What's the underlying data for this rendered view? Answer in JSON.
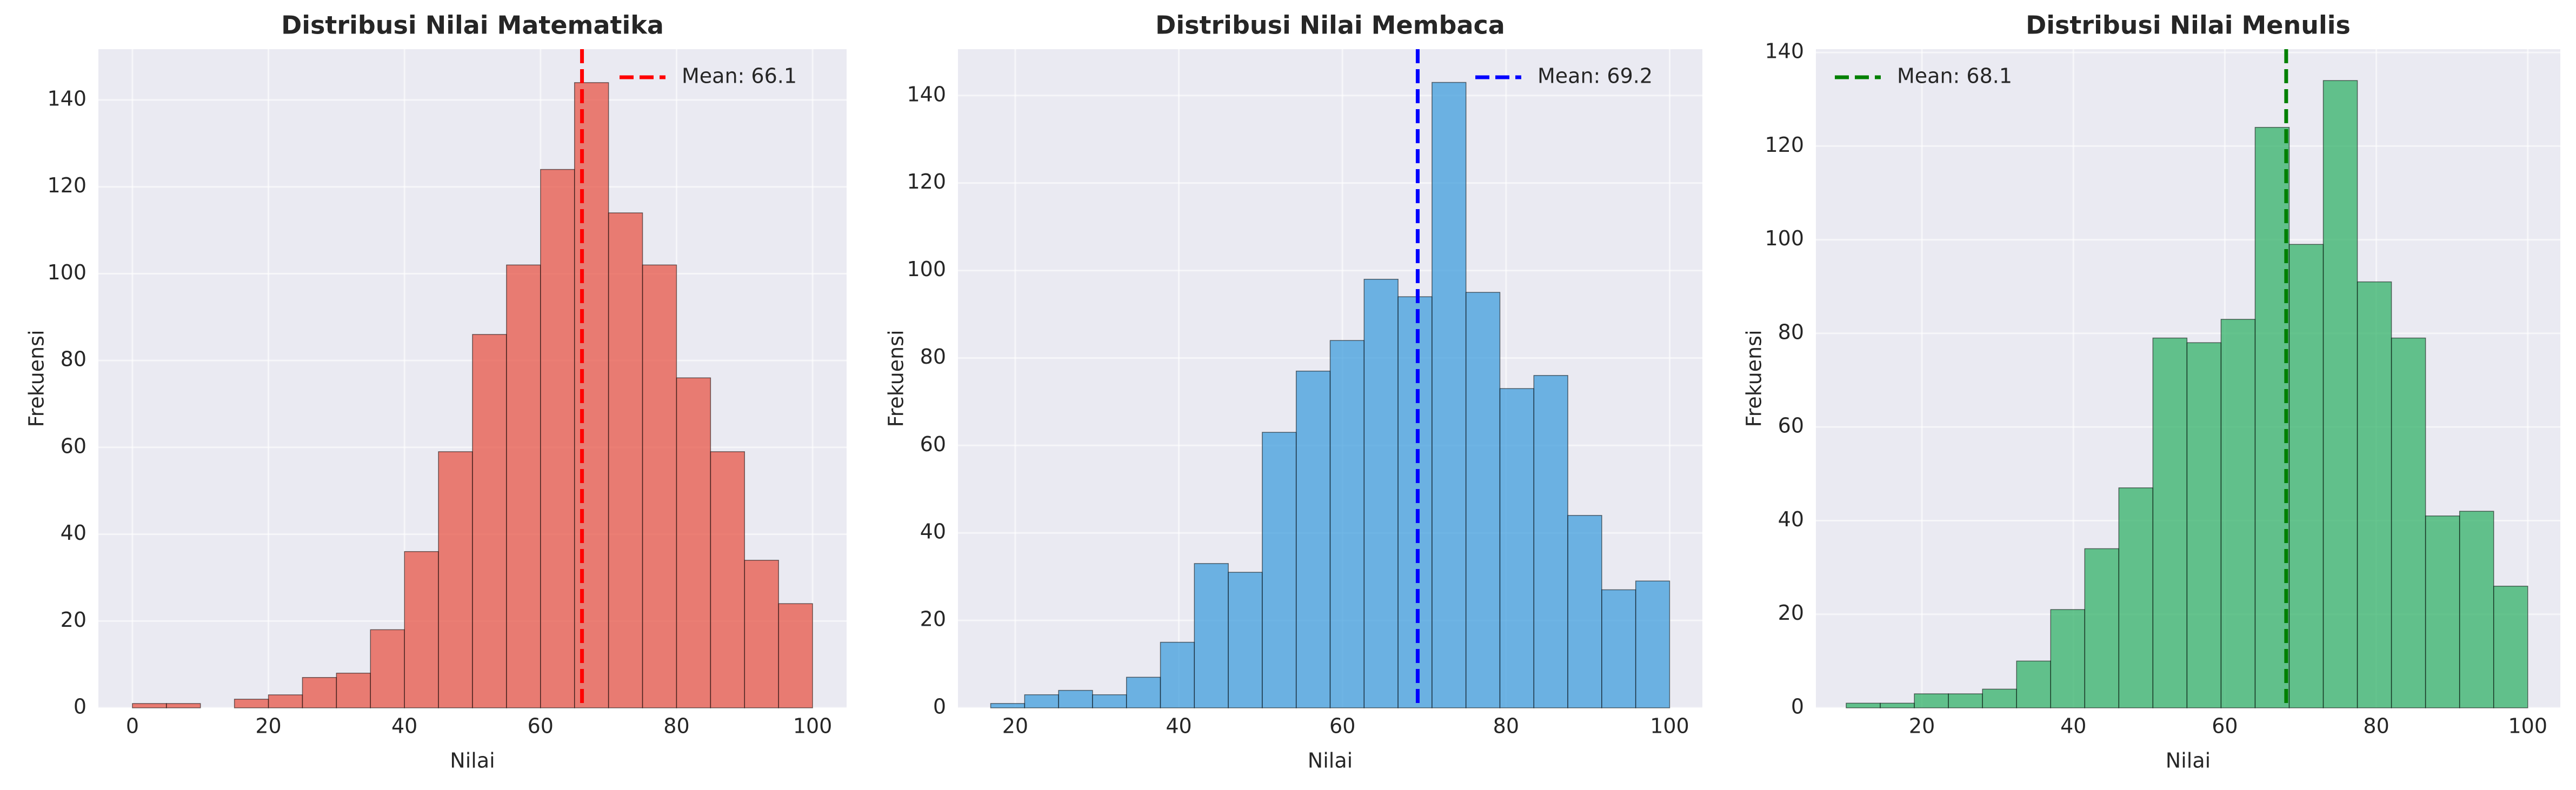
{
  "chart_data": [
    {
      "type": "histogram",
      "title": "Distribusi Nilai Matematika",
      "xlabel": "Nilai",
      "ylabel": "Frekuensi",
      "bins": [
        0,
        5,
        10,
        15,
        20,
        25,
        30,
        35,
        40,
        45,
        50,
        55,
        60,
        65,
        70,
        75,
        80,
        85,
        90,
        95,
        100
      ],
      "counts": [
        1,
        1,
        0,
        2,
        3,
        7,
        8,
        18,
        36,
        59,
        86,
        102,
        124,
        144,
        114,
        102,
        76,
        59,
        34,
        24
      ],
      "color": "#e74c3c",
      "xlim": [
        -5,
        105
      ],
      "ylim": [
        0,
        151.7
      ],
      "xticks": [
        0,
        20,
        40,
        60,
        80,
        100
      ],
      "yticks": [
        0,
        20,
        40,
        60,
        80,
        100,
        120,
        140
      ],
      "grid": true,
      "mean_line": {
        "label": "Mean: 66.1",
        "value": 66.1,
        "color": "#ff0000"
      },
      "legend": "upper right"
    },
    {
      "type": "histogram",
      "title": "Distribusi Nilai Membaca",
      "xlabel": "Nilai",
      "ylabel": "Frekuensi",
      "bins": [
        17,
        21.15,
        25.3,
        29.45,
        33.6,
        37.75,
        41.9,
        46.05,
        50.2,
        54.35,
        58.5,
        62.65,
        66.8,
        70.95,
        75.1,
        79.25,
        83.4,
        87.55,
        91.7,
        95.85,
        100
      ],
      "counts": [
        1,
        3,
        4,
        3,
        7,
        15,
        33,
        31,
        63,
        77,
        84,
        98,
        94,
        143,
        95,
        73,
        76,
        44,
        27,
        29
      ],
      "color": "#3498db",
      "xlim": [
        13,
        104
      ],
      "ylim": [
        0,
        150.6
      ],
      "xticks": [
        20,
        40,
        60,
        80,
        100
      ],
      "yticks": [
        0,
        20,
        40,
        60,
        80,
        100,
        120,
        140
      ],
      "grid": true,
      "mean_line": {
        "label": "Mean: 69.2",
        "value": 69.2,
        "color": "#0000ff"
      },
      "legend": "upper right"
    },
    {
      "type": "histogram",
      "title": "Distribusi Nilai Menulis",
      "xlabel": "Nilai",
      "ylabel": "Frekuensi",
      "bins": [
        10,
        14.5,
        19,
        23.5,
        28,
        32.5,
        37,
        41.5,
        46,
        50.5,
        55,
        59.5,
        64,
        68.5,
        73,
        77.5,
        82,
        86.5,
        91,
        95.5,
        100
      ],
      "counts": [
        1,
        1,
        3,
        3,
        4,
        10,
        21,
        34,
        47,
        79,
        78,
        83,
        124,
        99,
        134,
        91,
        79,
        41,
        42,
        26
      ],
      "color": "#27ae60",
      "xlim": [
        6,
        104.3
      ],
      "ylim": [
        0,
        140.7
      ],
      "xticks": [
        20,
        40,
        60,
        80,
        100
      ],
      "yticks": [
        0,
        20,
        40,
        60,
        80,
        100,
        120,
        140
      ],
      "grid": true,
      "mean_line": {
        "label": "Mean: 68.1",
        "value": 68.1,
        "color": "#008000"
      },
      "legend": "upper left"
    }
  ]
}
